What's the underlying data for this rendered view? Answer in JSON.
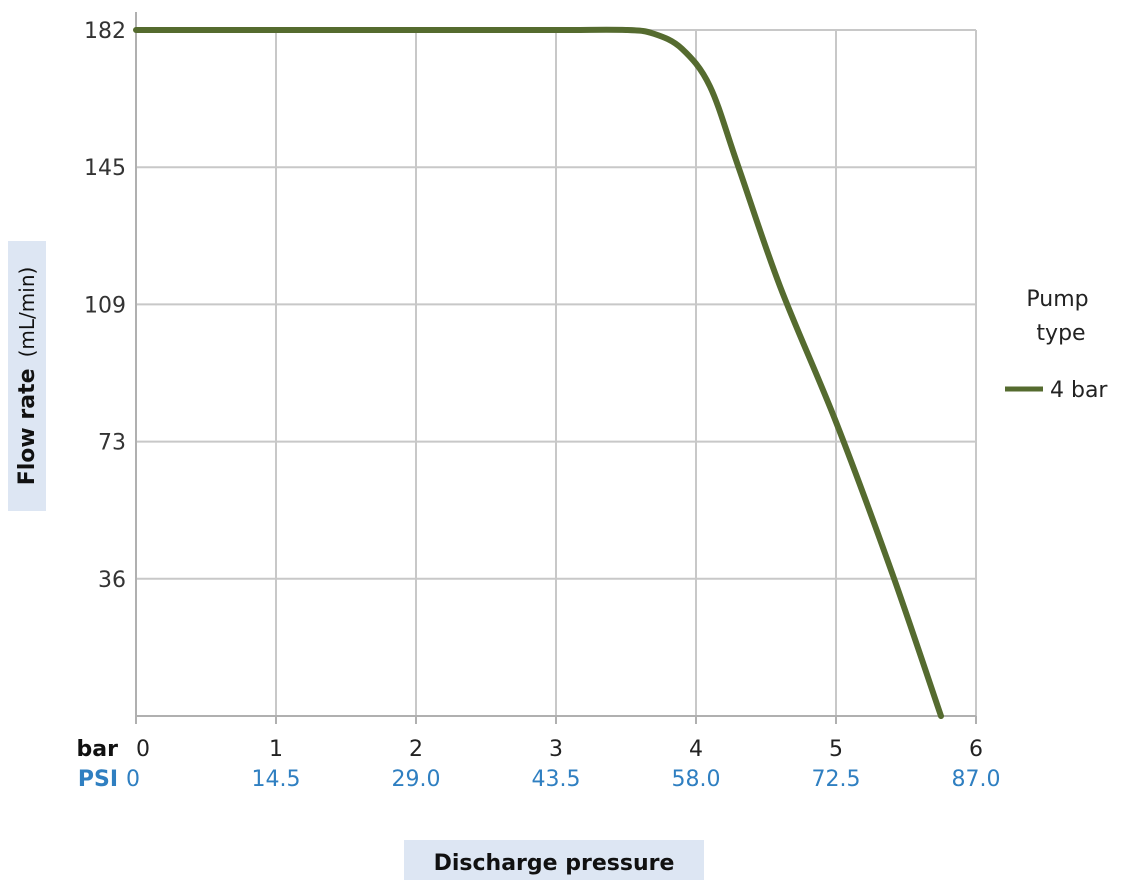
{
  "chart_data": {
    "type": "line",
    "ylabel": "Flow rate",
    "ylabel_unit": "(mL/min)",
    "xlabel": "Discharge pressure",
    "x_unit_bar": "bar",
    "x_unit_psi": "PSI",
    "x_ticks_bar": [
      "0",
      "1",
      "2",
      "3",
      "4",
      "5",
      "6"
    ],
    "x_ticks_psi": [
      "0",
      "14.5",
      "29.0",
      "43.5",
      "58.0",
      "72.5",
      "87.0"
    ],
    "y_ticks": [
      "182",
      "145",
      "109",
      "73",
      "36"
    ],
    "xlim": [
      0,
      6
    ],
    "ylim": [
      0,
      182
    ],
    "grid": true,
    "legend_title": "Pump type",
    "legend_position": "right",
    "series": [
      {
        "name": "4 bar",
        "color": "#556b2f",
        "x": [
          0,
          1,
          2,
          3,
          3.5,
          3.7,
          3.9,
          4.1,
          4.3,
          4.6,
          5.0,
          5.4,
          5.75
        ],
        "y": [
          182,
          182,
          182,
          182,
          182,
          181,
          177,
          167,
          146,
          114,
          78,
          38,
          0
        ]
      }
    ]
  }
}
